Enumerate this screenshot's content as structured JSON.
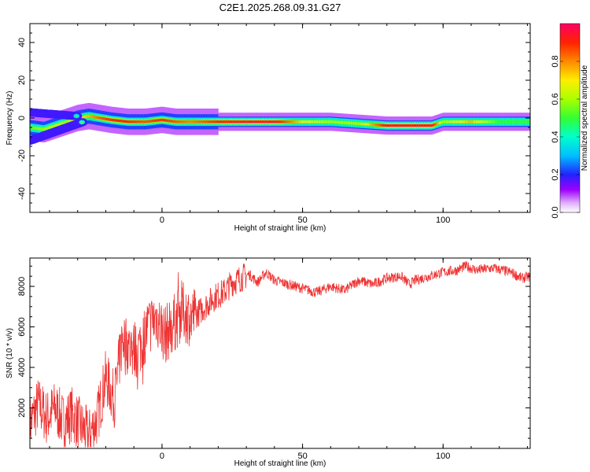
{
  "figure": {
    "title": "C2E1.2025.268.09.31.G27"
  },
  "chart_data": [
    {
      "type": "heatmap",
      "xlabel": "Height of straight line (km)",
      "ylabel": "Frequency (Hz)",
      "xlim": [
        -47,
        131
      ],
      "ylim": [
        -50,
        50
      ],
      "xticks": [
        0,
        50,
        100
      ],
      "yticks": [
        -40,
        -20,
        0,
        20,
        40
      ],
      "colorbar": {
        "label": "Normalized spectral amplitude",
        "range": [
          0,
          1
        ],
        "ticks": [
          0.0,
          0.2,
          0.4,
          0.6,
          0.8
        ],
        "tick_labels": [
          "0.0",
          "0.2",
          "0.4",
          "0.6",
          "0.8"
        ]
      },
      "ridge": [
        {
          "x": -47,
          "f": -5,
          "amp": 0.55
        },
        {
          "x": -42,
          "f": -6,
          "amp": 0.6
        },
        {
          "x": -38,
          "f": -4,
          "amp": 0.65
        },
        {
          "x": -34,
          "f": -2,
          "amp": 0.6
        },
        {
          "x": -30,
          "f": 0,
          "amp": 0.7
        },
        {
          "x": -26,
          "f": 1,
          "amp": 0.75
        },
        {
          "x": -22,
          "f": 0,
          "amp": 0.85
        },
        {
          "x": -18,
          "f": -1,
          "amp": 0.9
        },
        {
          "x": -12,
          "f": -2,
          "amp": 0.9
        },
        {
          "x": -6,
          "f": -2,
          "amp": 0.85
        },
        {
          "x": 0,
          "f": -1,
          "amp": 0.9
        },
        {
          "x": 5,
          "f": -2,
          "amp": 0.85
        },
        {
          "x": 10,
          "f": -2,
          "amp": 0.8
        },
        {
          "x": 20,
          "f": -2,
          "amp": 0.9
        },
        {
          "x": 30,
          "f": -2,
          "amp": 0.95
        },
        {
          "x": 40,
          "f": -2,
          "amp": 0.95
        },
        {
          "x": 50,
          "f": -2,
          "amp": 0.7
        },
        {
          "x": 60,
          "f": -2,
          "amp": 0.6
        },
        {
          "x": 70,
          "f": -3,
          "amp": 0.6
        },
        {
          "x": 80,
          "f": -4,
          "amp": 0.95
        },
        {
          "x": 90,
          "f": -4,
          "amp": 0.95
        },
        {
          "x": 96,
          "f": -4,
          "amp": 0.95
        },
        {
          "x": 100,
          "f": -2,
          "amp": 0.6
        },
        {
          "x": 110,
          "f": -2,
          "amp": 0.75
        },
        {
          "x": 120,
          "f": -2,
          "amp": 0.5
        },
        {
          "x": 131,
          "f": -2,
          "amp": 0.5
        }
      ],
      "secondary_tracks": [
        {
          "x0": -47,
          "f0": -12,
          "x1": -28,
          "f1": -2,
          "amp": 0.55
        },
        {
          "x0": -47,
          "f0": 3,
          "x1": -30,
          "f1": 1,
          "amp": 0.5
        }
      ]
    },
    {
      "type": "line",
      "xlabel": "Height of straight line (km)",
      "ylabel": "SNR (10 * v/v)",
      "xlim": [
        -47,
        131
      ],
      "ylim": [
        0,
        9400
      ],
      "xticks": [
        0,
        50,
        100
      ],
      "yticks": [
        2000,
        4000,
        6000,
        8000
      ],
      "color": "#ee3333",
      "series": [
        {
          "x": [
            -47,
            -44,
            -41,
            -38,
            -35,
            -32,
            -29,
            -26,
            -23,
            -20,
            -17,
            -14,
            -11,
            -8,
            -5,
            -2,
            1,
            4,
            7,
            10,
            13,
            16,
            19,
            22,
            25,
            28,
            31,
            34,
            37,
            40,
            45,
            50,
            55,
            60,
            65,
            70,
            75,
            80,
            85,
            88,
            90,
            95,
            100,
            105,
            108,
            112,
            118,
            124,
            128,
            131
          ],
          "y": [
            1200,
            2200,
            1500,
            2000,
            1300,
            1700,
            1100,
            600,
            1500,
            3500,
            2400,
            5500,
            4800,
            5000,
            6000,
            6500,
            5600,
            6100,
            6800,
            6500,
            6700,
            7100,
            7500,
            7700,
            8200,
            8400,
            8600,
            8200,
            8700,
            8300,
            8100,
            7900,
            7700,
            8000,
            7800,
            8300,
            8100,
            8400,
            8500,
            8100,
            8300,
            8500,
            8700,
            8800,
            9000,
            8800,
            8900,
            8700,
            8400,
            8500
          ]
        }
      ]
    }
  ]
}
